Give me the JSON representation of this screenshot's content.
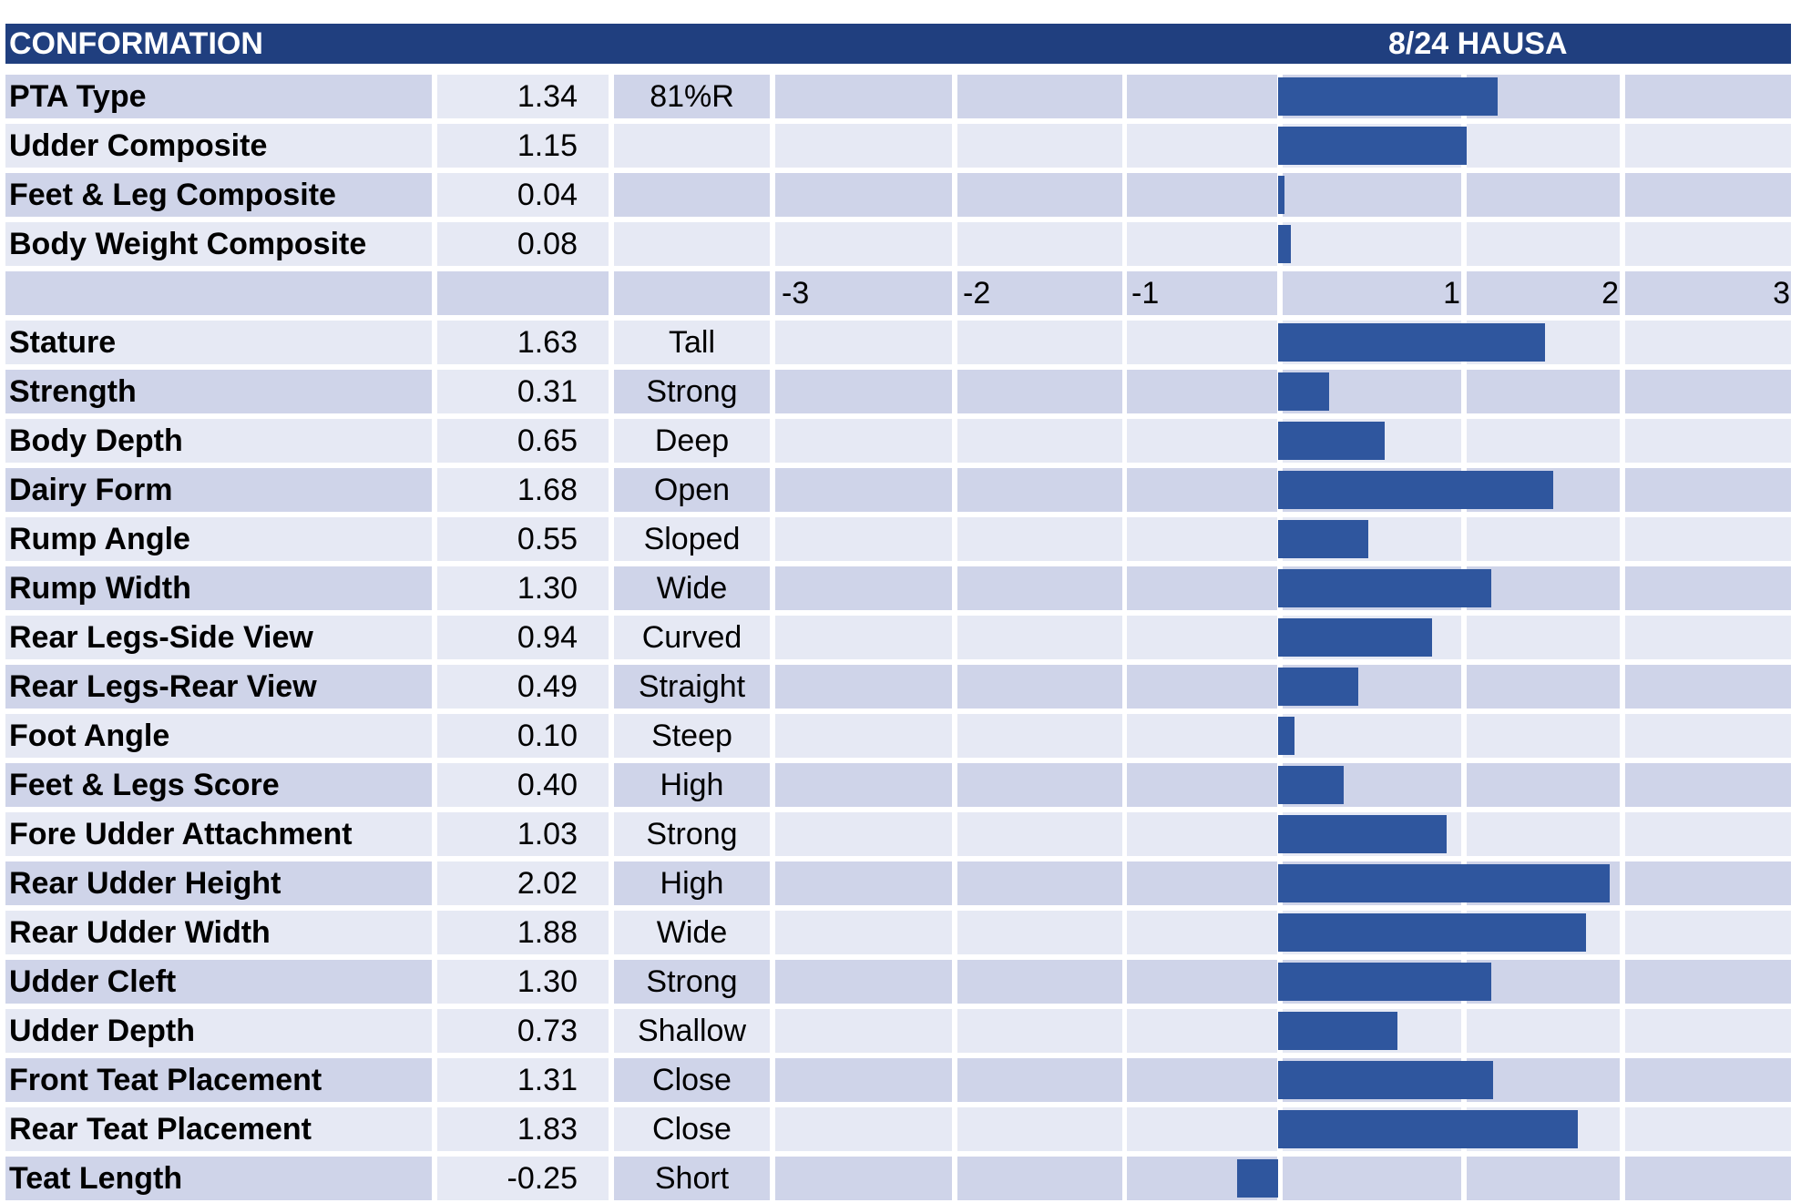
{
  "header": {
    "title": "CONFORMATION",
    "date_source": "8/24 HAUSA"
  },
  "chart_data": {
    "type": "bar",
    "orientation": "horizontal",
    "xlim": [
      -3,
      3
    ],
    "x_tick_labels": [
      "-3",
      "-2",
      "-1",
      "1",
      "2",
      "3"
    ],
    "colors": {
      "bar": "#2f569e",
      "header": "#203f7f",
      "row_light": "#e6e9f4",
      "row_dark": "#cfd4e9"
    },
    "composites": [
      {
        "label": "PTA Type",
        "value_text": "1.34",
        "value": 1.34,
        "note": "81%R"
      },
      {
        "label": "Udder Composite",
        "value_text": "1.15",
        "value": 1.15,
        "note": ""
      },
      {
        "label": "Feet & Leg Composite",
        "value_text": "0.04",
        "value": 0.04,
        "note": ""
      },
      {
        "label": "Body Weight Composite",
        "value_text": "0.08",
        "value": 0.08,
        "note": ""
      }
    ],
    "traits": [
      {
        "label": "Stature",
        "value_text": "1.63",
        "value": 1.63,
        "note": "Tall"
      },
      {
        "label": "Strength",
        "value_text": "0.31",
        "value": 0.31,
        "note": "Strong"
      },
      {
        "label": "Body Depth",
        "value_text": "0.65",
        "value": 0.65,
        "note": "Deep"
      },
      {
        "label": "Dairy Form",
        "value_text": "1.68",
        "value": 1.68,
        "note": "Open"
      },
      {
        "label": "Rump Angle",
        "value_text": "0.55",
        "value": 0.55,
        "note": "Sloped"
      },
      {
        "label": "Rump Width",
        "value_text": "1.30",
        "value": 1.3,
        "note": "Wide"
      },
      {
        "label": "Rear Legs-Side View",
        "value_text": "0.94",
        "value": 0.94,
        "note": "Curved"
      },
      {
        "label": "Rear Legs-Rear View",
        "value_text": "0.49",
        "value": 0.49,
        "note": "Straight"
      },
      {
        "label": "Foot Angle",
        "value_text": "0.10",
        "value": 0.1,
        "note": "Steep"
      },
      {
        "label": "Feet & Legs Score",
        "value_text": "0.40",
        "value": 0.4,
        "note": "High"
      },
      {
        "label": "Fore Udder Attachment",
        "value_text": "1.03",
        "value": 1.03,
        "note": "Strong"
      },
      {
        "label": "Rear Udder Height",
        "value_text": "2.02",
        "value": 2.02,
        "note": "High"
      },
      {
        "label": "Rear Udder Width",
        "value_text": "1.88",
        "value": 1.88,
        "note": "Wide"
      },
      {
        "label": "Udder Cleft",
        "value_text": "1.30",
        "value": 1.3,
        "note": "Strong"
      },
      {
        "label": "Udder Depth",
        "value_text": "0.73",
        "value": 0.73,
        "note": "Shallow"
      },
      {
        "label": "Front Teat Placement",
        "value_text": "1.31",
        "value": 1.31,
        "note": "Close"
      },
      {
        "label": "Rear Teat Placement",
        "value_text": "1.83",
        "value": 1.83,
        "note": "Close"
      },
      {
        "label": "Teat Length",
        "value_text": "-0.25",
        "value": -0.25,
        "note": "Short"
      }
    ]
  }
}
